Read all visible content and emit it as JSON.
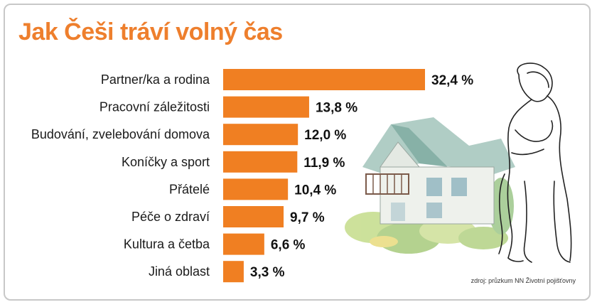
{
  "title": "Jak Češi tráví volný čas",
  "source": "zdroj: průzkum NN Životní pojišťovny",
  "colors": {
    "accent": "#ee7f2d",
    "bar": "#f07f22"
  },
  "illustration": "house-and-embracing-couple-drawing",
  "chart_data": {
    "type": "bar",
    "orientation": "horizontal",
    "title": "Jak Češi tráví volný čas",
    "categories": [
      "Partner/ka a rodina",
      "Pracovní záležitosti",
      "Budování, zvelebování domova",
      "Koníčky a sport",
      "Přátelé",
      "Péče o zdraví",
      "Kultura a četba",
      "Jiná oblast"
    ],
    "values": [
      32.4,
      13.8,
      12.0,
      11.9,
      10.4,
      9.7,
      6.6,
      3.3
    ],
    "value_labels": [
      "32,4 %",
      "13,8 %",
      "12,0 %",
      "11,9 %",
      "10,4 %",
      "9,7 %",
      "6,6 %",
      "3,3 %"
    ],
    "unit": "%",
    "xlim": [
      0,
      32.4
    ],
    "grid": false,
    "legend": "none"
  }
}
